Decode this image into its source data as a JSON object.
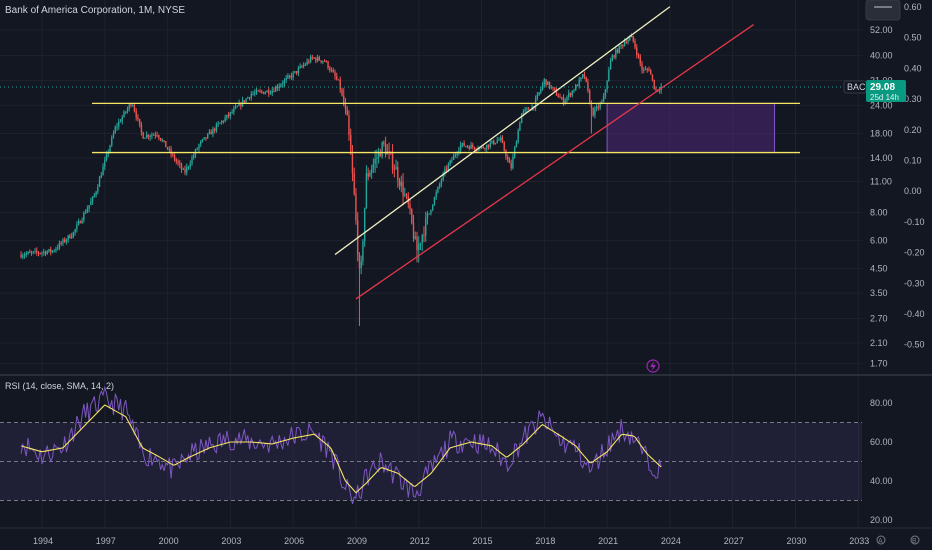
{
  "header": {
    "title": "Bank of America Corporation, 1M, NYSE"
  },
  "price_badge": {
    "ticker": "BAC",
    "price": "29.08",
    "countdown": "25d 14h"
  },
  "rsi_panel": {
    "title": "RSI (14, close, SMA, 14, 2)"
  },
  "footer": {
    "icons": [
      "globe-icon",
      "settings-icon"
    ],
    "icon_text": [
      "A",
      "B"
    ]
  },
  "colors": {
    "background": "#131722",
    "up": "#26a69a",
    "down": "#ef5350",
    "support": "#f5e663",
    "channel_upper": "#f0f0c0",
    "channel_lower": "#e8364a",
    "zone": "#5b2b8a",
    "rsi": "#7e57c2",
    "rsi_ma": "#f5e663",
    "badge": "#089981"
  },
  "chart_data": [
    {
      "type": "candlestick",
      "title": "Bank of America Corporation, 1M, NYSE",
      "scale": "log",
      "x_ticks": [
        "1994",
        "1997",
        "2000",
        "2003",
        "2006",
        "2009",
        "2012",
        "2015",
        "2018",
        "2021",
        "2024",
        "2027",
        "2030",
        "2033"
      ],
      "y_ticks_right": [
        "52.00",
        "40.00",
        "31.00",
        "24.00",
        "18.00",
        "14.00",
        "11.00",
        "8.00",
        "6.00",
        "4.50",
        "3.50",
        "2.70",
        "2.10",
        "1.70"
      ],
      "y_ticks_secondary": [
        "0.60",
        "0.50",
        "0.40",
        "0.30",
        "0.20",
        "0.10",
        "0.00",
        "-0.10",
        "-0.20",
        "-0.30",
        "-0.40",
        "-0.50"
      ],
      "close_path": [
        [
          1993.0,
          5.2
        ],
        [
          1994.5,
          5.4
        ],
        [
          1995.5,
          6.5
        ],
        [
          1996.5,
          9.5
        ],
        [
          1997.5,
          19.0
        ],
        [
          1998.3,
          25.0
        ],
        [
          1998.8,
          17.5
        ],
        [
          1999.5,
          18.0
        ],
        [
          2000.3,
          14.0
        ],
        [
          2000.8,
          12.0
        ],
        [
          2001.5,
          16.0
        ],
        [
          2002.5,
          20.0
        ],
        [
          2003.0,
          22.0
        ],
        [
          2004.0,
          27.0
        ],
        [
          2005.0,
          28.0
        ],
        [
          2006.0,
          33.0
        ],
        [
          2006.9,
          39.0
        ],
        [
          2007.5,
          38.0
        ],
        [
          2008.2,
          30.0
        ],
        [
          2008.6,
          20.0
        ],
        [
          2008.9,
          10.0
        ],
        [
          2009.2,
          3.8
        ],
        [
          2009.5,
          11.5
        ],
        [
          2010.3,
          16.0
        ],
        [
          2010.9,
          12.5
        ],
        [
          2011.5,
          8.5
        ],
        [
          2011.9,
          5.4
        ],
        [
          2012.6,
          8.5
        ],
        [
          2013.2,
          12.0
        ],
        [
          2014.0,
          16.0
        ],
        [
          2015.0,
          15.5
        ],
        [
          2015.9,
          17.0
        ],
        [
          2016.4,
          12.5
        ],
        [
          2016.9,
          22.0
        ],
        [
          2017.5,
          24.0
        ],
        [
          2018.0,
          31.0
        ],
        [
          2018.9,
          25.0
        ],
        [
          2019.5,
          29.0
        ],
        [
          2019.9,
          33.0
        ],
        [
          2020.3,
          22.0
        ],
        [
          2020.8,
          25.0
        ],
        [
          2021.2,
          39.0
        ],
        [
          2021.9,
          47.0
        ],
        [
          2022.2,
          48.0
        ],
        [
          2022.7,
          34.0
        ],
        [
          2023.0,
          35.0
        ],
        [
          2023.3,
          28.0
        ],
        [
          2023.6,
          29.08
        ]
      ],
      "lows": {
        "2009": 2.5,
        "2011": 4.8,
        "2020": 18.0
      },
      "support_lines": [
        24.5,
        14.8
      ],
      "zone": {
        "x": [
          2021.0,
          2029.0
        ],
        "y": [
          14.8,
          24.5
        ]
      },
      "channel_upper": [
        [
          2008.0,
          5.2
        ],
        [
          2024.0,
          66.0
        ]
      ],
      "channel_lower": [
        [
          2009.0,
          3.3
        ],
        [
          2028.0,
          55.0
        ]
      ],
      "last_price": 29.08
    },
    {
      "type": "line",
      "title": "RSI (14, close, SMA, 14, 2)",
      "y_ticks": [
        "80.00",
        "60.00",
        "40.00",
        "20.00"
      ],
      "ylim": [
        20,
        88
      ],
      "bands": [
        70,
        50,
        30
      ],
      "series": [
        {
          "values": [
            [
              1993.0,
              60
            ],
            [
              1994.0,
              53
            ],
            [
              1995.0,
              58
            ],
            [
              1996.0,
              74
            ],
            [
              1997.0,
              82
            ],
            [
              1998.0,
              76
            ],
            [
              1998.8,
              54
            ],
            [
              1999.5,
              52
            ],
            [
              2000.3,
              45
            ],
            [
              2001.0,
              53
            ],
            [
              2002.0,
              58
            ],
            [
              2003.0,
              62
            ],
            [
              2004.0,
              60
            ],
            [
              2005.0,
              59
            ],
            [
              2006.0,
              63
            ],
            [
              2007.0,
              65
            ],
            [
              2007.8,
              55
            ],
            [
              2008.5,
              36
            ],
            [
              2009.0,
              30
            ],
            [
              2009.5,
              42
            ],
            [
              2010.2,
              50
            ],
            [
              2011.0,
              42
            ],
            [
              2011.8,
              33
            ],
            [
              2012.6,
              46
            ],
            [
              2013.5,
              60
            ],
            [
              2014.5,
              61
            ],
            [
              2015.5,
              57
            ],
            [
              2016.2,
              49
            ],
            [
              2017.0,
              62
            ],
            [
              2017.9,
              72
            ],
            [
              2018.8,
              60
            ],
            [
              2019.5,
              57
            ],
            [
              2020.2,
              45
            ],
            [
              2021.0,
              58
            ],
            [
              2021.7,
              67
            ],
            [
              2022.3,
              62
            ],
            [
              2022.9,
              51
            ],
            [
              2023.6,
              45
            ]
          ]
        },
        {
          "values": [
            [
              1993.0,
              58
            ],
            [
              1994.0,
              55
            ],
            [
              1995.0,
              57
            ],
            [
              1996.0,
              68
            ],
            [
              1997.0,
              79
            ],
            [
              1998.0,
              73
            ],
            [
              1998.8,
              57
            ],
            [
              1999.5,
              53
            ],
            [
              2000.3,
              48
            ],
            [
              2001.0,
              52
            ],
            [
              2002.0,
              57
            ],
            [
              2003.0,
              60
            ],
            [
              2004.0,
              60
            ],
            [
              2005.0,
              59
            ],
            [
              2006.0,
              62
            ],
            [
              2007.0,
              64
            ],
            [
              2007.8,
              57
            ],
            [
              2008.5,
              40
            ],
            [
              2009.0,
              34
            ],
            [
              2009.5,
              39
            ],
            [
              2010.2,
              47
            ],
            [
              2011.0,
              44
            ],
            [
              2011.8,
              37
            ],
            [
              2012.6,
              44
            ],
            [
              2013.5,
              57
            ],
            [
              2014.5,
              60
            ],
            [
              2015.5,
              58
            ],
            [
              2016.2,
              52
            ],
            [
              2017.0,
              59
            ],
            [
              2017.9,
              69
            ],
            [
              2018.8,
              63
            ],
            [
              2019.5,
              58
            ],
            [
              2020.2,
              49
            ],
            [
              2021.0,
              55
            ],
            [
              2021.7,
              64
            ],
            [
              2022.3,
              63
            ],
            [
              2022.9,
              54
            ],
            [
              2023.6,
              47
            ]
          ]
        }
      ]
    }
  ]
}
